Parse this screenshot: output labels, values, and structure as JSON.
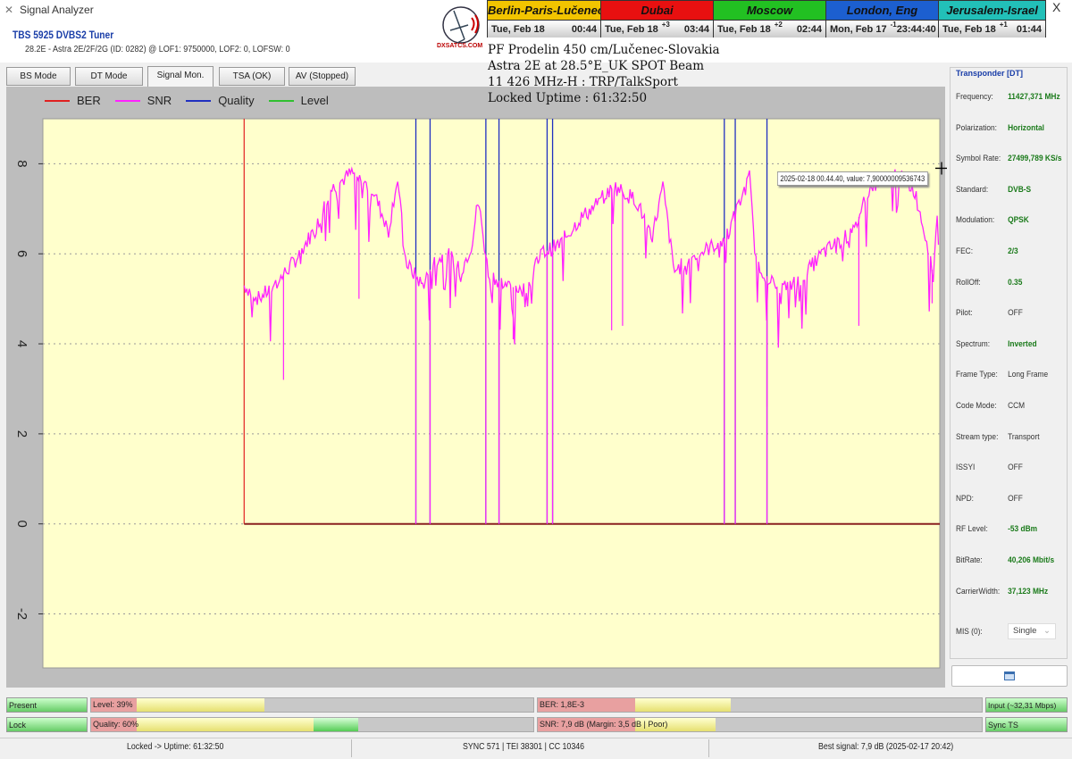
{
  "window": {
    "title": "Signal Analyzer",
    "close_label": "X"
  },
  "tuner": {
    "name": "TBS 5925 DVBS2 Tuner",
    "info": "28.2E - Astra 2E/2F/2G (ID: 0282) @ LOF1: 9750000, LOF2: 0, LOFSW: 0"
  },
  "logo": {
    "text": "DXSATCS.COM"
  },
  "clocks": [
    {
      "city": "Berlin-Paris-Lučenec",
      "date": "Tue, Feb 18",
      "offset": "",
      "time": "00:44",
      "color": "#f2c400"
    },
    {
      "city": "Dubai",
      "date": "Tue, Feb 18",
      "offset": "+3",
      "time": "03:44",
      "color": "#e81010"
    },
    {
      "city": "Moscow",
      "date": "Tue, Feb 18",
      "offset": "+2",
      "time": "02:44",
      "color": "#22c022"
    },
    {
      "city": "London, Eng",
      "date": "Mon, Feb 17",
      "offset": "-1",
      "time": "23:44:40",
      "color": "#1c5fd0"
    },
    {
      "city": "Jerusalem-Israel",
      "date": "Tue, Feb 18",
      "offset": "+1",
      "time": "01:44",
      "color": "#22c0b8"
    }
  ],
  "overlay": [
    "PF Prodelin 450 cm/Lučenec-Slovakia",
    "Astra 2E at 28.5°E_UK SPOT Beam",
    "11 426 MHz-H : TRP/TalkSport",
    "Locked Uptime : 61:32:50"
  ],
  "tabs": [
    {
      "label": "BS Mode"
    },
    {
      "label": "DT Mode"
    },
    {
      "label": "Signal Mon.",
      "active": true
    },
    {
      "label": "TSA (OK)"
    },
    {
      "label": "AV (Stopped)"
    }
  ],
  "tooltip": "2025-02-18 00.44.40, value: 7,90000009536743",
  "chart_data": {
    "type": "line",
    "title": "",
    "legend": [
      {
        "name": "BER",
        "color": "#e02020"
      },
      {
        "name": "SNR",
        "color": "#ff22ff"
      },
      {
        "name": "Quality",
        "color": "#2030c0"
      },
      {
        "name": "Level",
        "color": "#30c030"
      }
    ],
    "legend_position": "top-left",
    "ylim": [
      -3.2,
      9
    ],
    "yticks": [
      -2,
      0,
      2,
      4,
      6,
      8
    ],
    "grid": "horizontal dotted",
    "background": "#ffffcc",
    "x_range": [
      0,
      820
    ],
    "series": [
      {
        "name": "SNR",
        "envelope": [
          [
            184,
            5.3
          ],
          [
            197,
            5.0
          ],
          [
            212,
            5.3
          ],
          [
            232,
            5.9
          ],
          [
            252,
            6.7
          ],
          [
            262,
            7.4
          ],
          [
            282,
            7.8
          ],
          [
            302,
            7.4
          ],
          [
            316,
            6.5
          ],
          [
            324,
            7.7
          ],
          [
            332,
            5.8
          ],
          [
            347,
            5.3
          ],
          [
            357,
            5.8
          ],
          [
            370,
            6.0
          ],
          [
            382,
            5.6
          ],
          [
            392,
            6.2
          ],
          [
            398,
            7.2
          ],
          [
            407,
            5.6
          ],
          [
            422,
            5.3
          ],
          [
            442,
            5.2
          ],
          [
            455,
            6.0
          ],
          [
            472,
            6.2
          ],
          [
            492,
            6.8
          ],
          [
            502,
            7.0
          ],
          [
            522,
            7.5
          ],
          [
            542,
            7.2
          ],
          [
            557,
            6.4
          ],
          [
            567,
            7.5
          ],
          [
            577,
            5.6
          ],
          [
            592,
            5.9
          ],
          [
            607,
            6.1
          ],
          [
            622,
            6.3
          ],
          [
            627,
            6.5
          ],
          [
            646,
            7.7
          ],
          [
            652,
            5.8
          ],
          [
            672,
            5.2
          ],
          [
            692,
            5.4
          ],
          [
            712,
            6.0
          ],
          [
            742,
            6.5
          ],
          [
            752,
            7.3
          ],
          [
            762,
            7.6
          ],
          [
            780,
            7.8
          ],
          [
            797,
            7.4
          ],
          [
            812,
            5.9
          ],
          [
            814,
            5.4
          ],
          [
            820,
            7.9
          ]
        ],
        "dips": [
          [
            220,
            3.2
          ],
          [
            341,
            0
          ],
          [
            354,
            0
          ],
          [
            405,
            0
          ],
          [
            417,
            0
          ],
          [
            461,
            0
          ],
          [
            466,
            0
          ],
          [
            623,
            0
          ],
          [
            633,
            0
          ],
          [
            662,
            0
          ],
          [
            662,
            2.6
          ],
          [
            530,
            4.4
          ],
          [
            289,
            5.0
          ],
          [
            430,
            4.1
          ],
          [
            520,
            4.3
          ],
          [
            746,
            4.4
          ],
          [
            813,
            4.9
          ]
        ]
      },
      {
        "name": "Quality",
        "events_at_zero": [
          341,
          354,
          405,
          417,
          461,
          466,
          623,
          633,
          662
        ]
      },
      {
        "name": "BER",
        "start": 184,
        "value": 0
      },
      {
        "name": "Level",
        "value": 0
      }
    ]
  },
  "transponder": {
    "title": "Transponder [DT]",
    "rows": [
      {
        "k": "Frequency:",
        "v": "11427,371 MHz",
        "g": true
      },
      {
        "k": "Polarization:",
        "v": "Horizontal",
        "g": true
      },
      {
        "k": "Symbol Rate:",
        "v": "27499,789 KS/s",
        "g": true
      },
      {
        "k": "Standard:",
        "v": "DVB-S",
        "g": true
      },
      {
        "k": "Modulation:",
        "v": "QPSK",
        "g": true
      },
      {
        "k": "FEC:",
        "v": "2/3",
        "g": true
      },
      {
        "k": "RollOff:",
        "v": "0.35",
        "g": true
      },
      {
        "k": "Pilot:",
        "v": "OFF",
        "g": false
      },
      {
        "k": "Spectrum:",
        "v": "Inverted",
        "g": true
      },
      {
        "k": "Frame Type:",
        "v": "Long Frame",
        "g": false
      },
      {
        "k": "Code Mode:",
        "v": "CCM",
        "g": false
      },
      {
        "k": "Stream type:",
        "v": "Transport",
        "g": false
      },
      {
        "k": "ISSYI",
        "v": "OFF",
        "g": false
      },
      {
        "k": "NPD:",
        "v": "OFF",
        "g": false
      },
      {
        "k": "RF Level:",
        "v": "-53 dBm",
        "g": true
      },
      {
        "k": "BitRate:",
        "v": "40,206 Mbit/s",
        "g": true
      },
      {
        "k": "CarrierWidth:",
        "v": "37,123 MHz",
        "g": true
      }
    ],
    "mis_label": "MIS (0):",
    "mis_value": "Single"
  },
  "indicators": {
    "present": "Present",
    "lock": "Lock",
    "input": "Input (~32,31 Mbps)",
    "sync": "Sync TS",
    "level": {
      "label": "Level: 39%",
      "percent": 39
    },
    "quality": {
      "label": "Quality: 60%",
      "percent": 60
    },
    "ber": {
      "label": "BER: 1,8E-3"
    },
    "snr": {
      "label": "SNR: 7,9 dB (Margin: 3,5 dB | Poor)"
    }
  },
  "status": {
    "uptime": "Locked -> Uptime: 61:32:50",
    "sync": "SYNC 571 | TEI 38301 | CC 10346",
    "best": "Best signal: 7,9 dB (2025-02-17 20:42)"
  }
}
